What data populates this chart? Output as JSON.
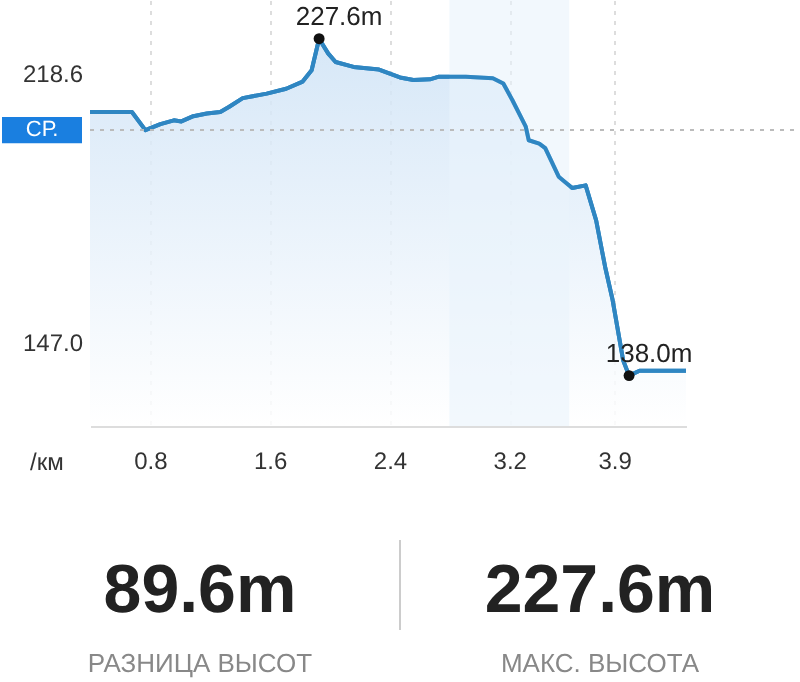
{
  "chart_data": {
    "type": "area",
    "xlabel": "/км",
    "x": [
      0.4,
      0.68,
      0.77,
      0.87,
      0.96,
      1.01,
      1.09,
      1.18,
      1.27,
      1.33,
      1.42,
      1.58,
      1.71,
      1.82,
      1.88,
      1.93,
      1.99,
      2.04,
      2.16,
      2.33,
      2.47,
      2.56,
      2.67,
      2.73,
      2.91,
      3.09,
      3.16,
      3.22,
      3.31,
      3.33,
      3.4,
      3.44,
      3.53,
      3.62,
      3.71,
      3.78,
      3.84,
      3.89,
      3.96,
      4.0,
      4.07,
      4.38
    ],
    "series": [
      {
        "color": "#2f86c2",
        "values": [
          208.1,
          208.1,
          203.3,
          204.9,
          205.9,
          205.6,
          207.0,
          207.7,
          208.1,
          209.5,
          211.8,
          213.0,
          214.3,
          216.2,
          219.2,
          227.6,
          223.7,
          221.4,
          220.1,
          219.4,
          217.3,
          216.6,
          216.8,
          217.5,
          217.5,
          217.1,
          215.7,
          211.3,
          204.2,
          200.6,
          199.7,
          198.5,
          190.9,
          187.9,
          188.6,
          179.3,
          166.9,
          158.1,
          142.1,
          138.0,
          139.3,
          139.3
        ]
      },
      {
        "type": "scatter",
        "color": "#111111",
        "x": [
          1.93,
          4.0
        ],
        "values": [
          227.6,
          138.0
        ]
      }
    ],
    "xlim": [
      0.4,
      4.38
    ],
    "ylim": [
      124.6,
      237.9
    ],
    "xticks": [
      0.8,
      1.6,
      2.4,
      3.2,
      3.9
    ],
    "yticks": [
      218.6,
      {
        "value": 147.0,
        "label": "147.0"
      }
    ],
    "ref_lines": [
      {
        "axis": "y",
        "value": 203.3,
        "label": "СР.",
        "line_style": "dotted"
      }
    ],
    "bands": [
      {
        "axis": "x",
        "from": 2.8,
        "to": 3.6,
        "color": "#eaf3fc"
      }
    ],
    "annotations": [
      {
        "text": "227.6m",
        "x": 1.93,
        "y": 227.6
      },
      {
        "text": "138.0m",
        "x": 4.0,
        "y": 138.0
      },
      "89.6m",
      "РАЗНИЦА ВЫСОТ",
      "227.6m",
      "МАКС. ВЫСОТА"
    ],
    "grid": "x"
  }
}
